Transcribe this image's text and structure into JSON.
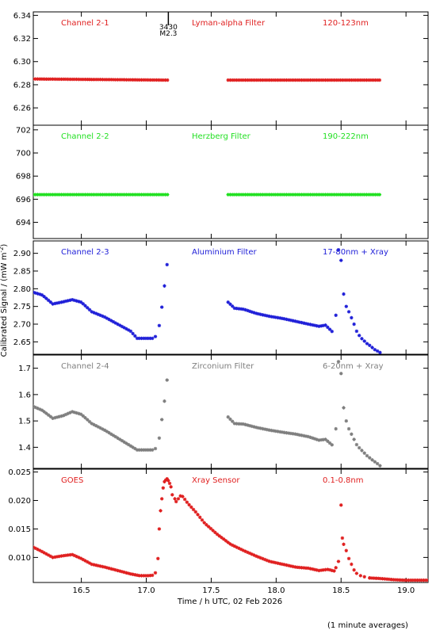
{
  "figure": {
    "ylabel": "Calibrated Signal / (mW m",
    "ylabel_sup": "-2",
    "ylabel_end": ")",
    "xlabel": "Time / h UTC, 02 Feb 2026",
    "footnote": "(1 minute averages)",
    "flare_mark": {
      "x": 17.17,
      "label_top": "3430",
      "label_bottom": "M2.3"
    }
  },
  "chart_data": [
    {
      "type": "scatter",
      "title": "Channel 2-1",
      "subtitle": "Lyman-alpha Filter",
      "range_label": "120-123nm",
      "color": "#e02020",
      "xlim": [
        16.13,
        19.17
      ],
      "ylim": [
        6.245,
        6.343
      ],
      "yticks": [
        6.26,
        6.28,
        6.3,
        6.32,
        6.34
      ],
      "ytick_labels": [
        "6.26",
        "6.28",
        "6.30",
        "6.32",
        "6.34"
      ],
      "segments": [
        {
          "x": [
            16.13,
            17.17
          ],
          "y": [
            6.285,
            6.284
          ],
          "dense": true
        },
        {
          "x": [
            17.63,
            18.8
          ],
          "y": [
            6.284,
            6.284
          ],
          "dense": true
        }
      ]
    },
    {
      "type": "scatter",
      "title": "Channel 2-2",
      "subtitle": "Herzberg Filter",
      "range_label": "190-222nm",
      "color": "#22e022",
      "xlim": [
        16.13,
        19.17
      ],
      "ylim": [
        692.6,
        702.4
      ],
      "yticks": [
        694,
        696,
        698,
        700,
        702
      ],
      "ytick_labels": [
        "694",
        "696",
        "698",
        "700",
        "702"
      ],
      "segments": [
        {
          "x": [
            16.13,
            17.17
          ],
          "y": [
            696.4,
            696.4
          ],
          "dense": true
        },
        {
          "x": [
            17.63,
            18.8
          ],
          "y": [
            696.4,
            696.4
          ],
          "dense": true
        }
      ]
    },
    {
      "type": "scatter",
      "title": "Channel 2-3",
      "subtitle": "Aluminium Filter",
      "range_label": "17-80nm + Xray",
      "color": "#2020d8",
      "xlim": [
        16.13,
        19.17
      ],
      "ylim": [
        2.615,
        2.935
      ],
      "yticks": [
        2.65,
        2.7,
        2.75,
        2.8,
        2.85,
        2.9
      ],
      "ytick_labels": [
        "2.65",
        "2.70",
        "2.75",
        "2.80",
        "2.85",
        "2.90"
      ],
      "segments": [
        {
          "x": [
            16.13,
            16.2,
            16.28,
            16.36,
            16.43,
            16.5,
            16.58,
            16.68,
            16.78,
            16.88,
            16.93,
            17.0,
            17.06
          ],
          "y": [
            2.79,
            2.782,
            2.757,
            2.763,
            2.769,
            2.762,
            2.735,
            2.72,
            2.7,
            2.68,
            2.66,
            2.66,
            2.66
          ],
          "dense": true
        },
        {
          "x": [
            17.07,
            17.1,
            17.12,
            17.14,
            17.16
          ],
          "y": [
            2.665,
            2.696,
            2.748,
            2.808,
            2.868
          ],
          "dense": false
        },
        {
          "x": [
            17.63,
            17.68,
            17.75,
            17.85,
            17.95,
            18.05,
            18.15,
            18.25,
            18.33,
            18.38,
            18.44
          ],
          "y": [
            2.762,
            2.745,
            2.742,
            2.73,
            2.722,
            2.716,
            2.708,
            2.7,
            2.694,
            2.697,
            2.676
          ],
          "dense": true
        },
        {
          "x": [
            18.46,
            18.48,
            18.5,
            18.52,
            18.54,
            18.56,
            18.58,
            18.6,
            18.62,
            18.64,
            18.66,
            18.68,
            18.7,
            18.72,
            18.74,
            18.76,
            18.78,
            18.8
          ],
          "y": [
            2.725,
            2.91,
            2.88,
            2.785,
            2.75,
            2.735,
            2.718,
            2.7,
            2.68,
            2.668,
            2.659,
            2.652,
            2.645,
            2.64,
            2.634,
            2.628,
            2.624,
            2.62
          ],
          "dense": false
        }
      ]
    },
    {
      "type": "scatter",
      "title": "Channel 2-4",
      "subtitle": "Zirconium Filter",
      "range_label": "6-20nm + Xray",
      "color": "#7f7f7f",
      "xlim": [
        16.13,
        19.17
      ],
      "ylim": [
        1.32,
        1.75
      ],
      "yticks": [
        1.4,
        1.5,
        1.6,
        1.7
      ],
      "ytick_labels": [
        "1.4",
        "1.5",
        "1.6",
        "1.7"
      ],
      "segments": [
        {
          "x": [
            16.13,
            16.2,
            16.28,
            16.36,
            16.43,
            16.5,
            16.58,
            16.68,
            16.78,
            16.88,
            16.93,
            17.0,
            17.06
          ],
          "y": [
            1.555,
            1.54,
            1.51,
            1.52,
            1.535,
            1.525,
            1.49,
            1.465,
            1.435,
            1.405,
            1.39,
            1.39,
            1.39
          ],
          "dense": true
        },
        {
          "x": [
            17.07,
            17.1,
            17.12,
            17.14,
            17.16
          ],
          "y": [
            1.395,
            1.435,
            1.505,
            1.575,
            1.655
          ],
          "dense": false
        },
        {
          "x": [
            17.63,
            17.68,
            17.75,
            17.85,
            17.95,
            18.05,
            18.15,
            18.25,
            18.33,
            18.38,
            18.44
          ],
          "y": [
            1.515,
            1.49,
            1.488,
            1.475,
            1.465,
            1.457,
            1.45,
            1.44,
            1.427,
            1.43,
            1.405
          ],
          "dense": true
        },
        {
          "x": [
            18.46,
            18.48,
            18.5,
            18.52,
            18.54,
            18.56,
            18.58,
            18.6,
            18.62,
            18.64,
            18.66,
            18.68,
            18.7,
            18.72,
            18.74,
            18.76,
            18.78,
            18.8
          ],
          "y": [
            1.47,
            1.725,
            1.68,
            1.55,
            1.5,
            1.47,
            1.45,
            1.43,
            1.41,
            1.398,
            1.388,
            1.378,
            1.368,
            1.36,
            1.352,
            1.345,
            1.338,
            1.33
          ],
          "dense": false
        }
      ]
    },
    {
      "type": "scatter",
      "title": "GOES",
      "subtitle": "Xray Sensor",
      "range_label": "0.1-0.8nm",
      "color": "#e02020",
      "xlim": [
        16.13,
        19.17
      ],
      "ylim": [
        0.0056,
        0.0255
      ],
      "yticks": [
        0.01,
        0.015,
        0.02,
        0.025
      ],
      "ytick_labels": [
        "0.010",
        "0.015",
        "0.020",
        "0.025"
      ],
      "segments": [
        {
          "x": [
            16.13,
            16.2,
            16.28,
            16.36,
            16.43,
            16.5,
            16.58,
            16.68,
            16.78,
            16.88,
            16.95,
            17.02,
            17.06
          ],
          "y": [
            0.0118,
            0.011,
            0.01,
            0.0103,
            0.0105,
            0.0098,
            0.0088,
            0.0083,
            0.0077,
            0.0071,
            0.0068,
            0.0068,
            0.0069
          ],
          "dense": true
        },
        {
          "x": [
            17.07,
            17.09,
            17.1,
            17.11,
            17.12,
            17.13,
            17.14,
            17.15,
            17.16,
            17.17,
            17.18,
            17.19,
            17.2,
            17.22
          ],
          "y": [
            0.0073,
            0.0098,
            0.015,
            0.0182,
            0.0203,
            0.0222,
            0.0233,
            0.0236,
            0.0238,
            0.0235,
            0.023,
            0.0224,
            0.021,
            0.0203
          ],
          "dense": false
        },
        {
          "x": [
            17.23,
            17.27,
            17.32,
            17.38,
            17.45,
            17.55,
            17.65,
            17.75,
            17.85,
            17.95,
            18.05,
            18.15,
            18.25,
            18.33,
            18.4,
            18.45
          ],
          "y": [
            0.0198,
            0.021,
            0.0195,
            0.018,
            0.016,
            0.014,
            0.0123,
            0.0112,
            0.0102,
            0.0093,
            0.0088,
            0.0083,
            0.0081,
            0.0077,
            0.0079,
            0.0076
          ],
          "dense": true
        },
        {
          "x": [
            18.46,
            18.48,
            18.5,
            18.51,
            18.52,
            18.54,
            18.56,
            18.58,
            18.6,
            18.62,
            18.65,
            18.68,
            18.72
          ],
          "y": [
            0.0082,
            0.0093,
            0.0192,
            0.0134,
            0.0123,
            0.0112,
            0.0098,
            0.0088,
            0.0078,
            0.0072,
            0.0068,
            0.0066,
            0.0064
          ],
          "dense": false
        },
        {
          "x": [
            18.72,
            18.8,
            18.9,
            19.0,
            19.08,
            19.17
          ],
          "y": [
            0.0064,
            0.0063,
            0.0061,
            0.006,
            0.006,
            0.006
          ],
          "dense": true
        }
      ]
    }
  ],
  "xaxis": {
    "ticks": [
      16.5,
      17.0,
      17.5,
      18.0,
      18.5,
      19.0
    ],
    "tick_labels": [
      "16.5",
      "17.0",
      "17.5",
      "18.0",
      "18.5",
      "19.0"
    ]
  }
}
